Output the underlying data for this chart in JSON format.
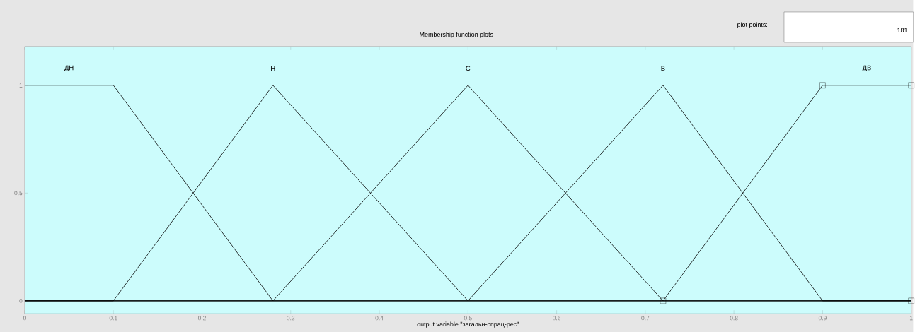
{
  "chart_data": {
    "type": "line",
    "title": "Membership function plots",
    "xlabel": "output variable \"загальн-спрац-рес\"",
    "annotations": [
      "plot points:",
      "181"
    ],
    "series": [
      {
        "name": "ДН",
        "color": "#000000",
        "x": [
          0,
          0.1,
          0.28,
          1
        ],
        "values": [
          1,
          1,
          0,
          0
        ]
      },
      {
        "name": "Н",
        "color": "#000000",
        "x": [
          0,
          0.1,
          0.28,
          0.5,
          1
        ],
        "values": [
          0,
          0,
          1,
          0,
          0
        ]
      },
      {
        "name": "С",
        "color": "#000000",
        "x": [
          0,
          0.28,
          0.5,
          0.72,
          1
        ],
        "values": [
          0,
          0,
          1,
          0,
          0
        ]
      },
      {
        "name": "В",
        "color": "#000000",
        "x": [
          0,
          0.5,
          0.72,
          0.9,
          1
        ],
        "values": [
          0,
          0,
          1,
          0,
          0
        ]
      },
      {
        "name": "ДВ",
        "color": "#000000",
        "x": [
          0,
          0.72,
          0.9,
          1
        ],
        "values": [
          0,
          0,
          1,
          1
        ]
      },
      {
        "type": "scatter",
        "marker": "square",
        "color": "#000000",
        "x": [
          0.72,
          0.9,
          1,
          1
        ],
        "values": [
          0,
          1,
          1,
          0
        ]
      }
    ],
    "xlim": [
      0,
      1
    ],
    "ylim": [
      -0.06,
      1.18
    ],
    "xticks": [
      0,
      0.1,
      0.2,
      0.3,
      0.4,
      0.5,
      0.6,
      0.7,
      0.8,
      0.9,
      1
    ],
    "yticks": [
      0,
      0.5,
      1
    ],
    "grid": false,
    "legend": false,
    "line_style": "solid"
  }
}
